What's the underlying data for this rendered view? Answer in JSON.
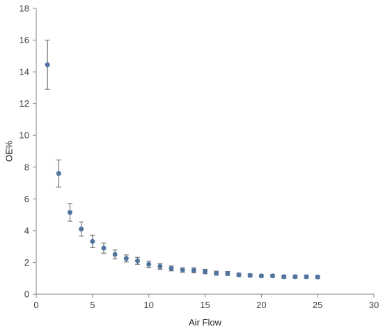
{
  "chart_data": {
    "type": "scatter",
    "xlabel": "Air Flow",
    "ylabel": "OE%",
    "xlim": [
      0,
      30
    ],
    "ylim": [
      0,
      18
    ],
    "x_ticks": [
      0,
      5,
      10,
      15,
      20,
      25,
      30
    ],
    "y_ticks": [
      0,
      2,
      4,
      6,
      8,
      10,
      12,
      14,
      16,
      18
    ],
    "grid": false,
    "legend": "none",
    "marker_color": "#4F74A0",
    "errorbar_color": "#595959",
    "axis_color": "#868686",
    "series": [
      {
        "x": [
          1,
          2,
          3,
          4,
          5,
          6,
          7,
          8,
          9,
          10,
          11,
          12,
          13,
          14,
          15,
          16,
          17,
          18,
          19,
          20,
          21,
          22,
          23,
          24,
          25
        ],
        "y": [
          14.45,
          7.6,
          5.15,
          4.1,
          3.32,
          2.9,
          2.5,
          2.25,
          2.1,
          1.88,
          1.75,
          1.62,
          1.52,
          1.5,
          1.42,
          1.32,
          1.3,
          1.22,
          1.18,
          1.15,
          1.15,
          1.1,
          1.1,
          1.1,
          1.08
        ],
        "err": [
          1.55,
          0.85,
          0.55,
          0.45,
          0.4,
          0.32,
          0.28,
          0.22,
          0.22,
          0.2,
          0.18,
          0.16,
          0.14,
          0.16,
          0.14,
          0.13,
          0.12,
          0.11,
          0.1,
          0.08,
          0.08,
          0.1,
          0.1,
          0.1,
          0.1
        ]
      }
    ]
  }
}
